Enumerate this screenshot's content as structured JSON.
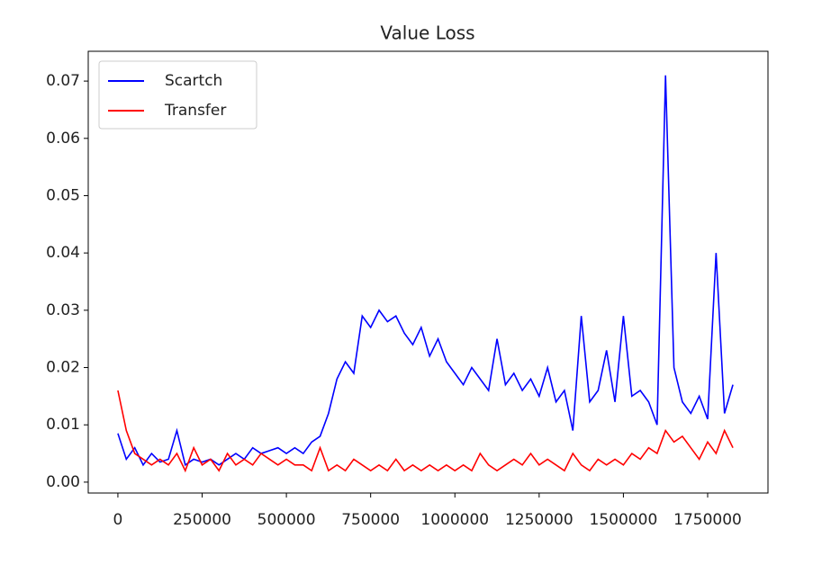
{
  "chart_data": {
    "type": "line",
    "title": "Value Loss",
    "x": [
      0,
      25000,
      50000,
      75000,
      100000,
      125000,
      150000,
      175000,
      200000,
      225000,
      250000,
      275000,
      300000,
      325000,
      350000,
      375000,
      400000,
      425000,
      450000,
      475000,
      500000,
      525000,
      550000,
      575000,
      600000,
      625000,
      650000,
      675000,
      700000,
      725000,
      750000,
      775000,
      800000,
      825000,
      850000,
      875000,
      900000,
      925000,
      950000,
      975000,
      1000000,
      1025000,
      1050000,
      1075000,
      1100000,
      1125000,
      1150000,
      1175000,
      1200000,
      1225000,
      1250000,
      1275000,
      1300000,
      1325000,
      1350000,
      1375000,
      1400000,
      1425000,
      1450000,
      1475000,
      1500000,
      1525000,
      1550000,
      1575000,
      1600000,
      1625000,
      1650000,
      1675000,
      1700000,
      1725000,
      1750000,
      1775000,
      1800000,
      1825000
    ],
    "series": [
      {
        "name": "Scartch",
        "color": "#0000ff",
        "values": [
          0.0085,
          0.004,
          0.006,
          0.003,
          0.005,
          0.0035,
          0.004,
          0.009,
          0.003,
          0.004,
          0.0035,
          0.004,
          0.003,
          0.004,
          0.005,
          0.004,
          0.006,
          0.005,
          0.0055,
          0.006,
          0.005,
          0.006,
          0.005,
          0.007,
          0.008,
          0.012,
          0.018,
          0.021,
          0.019,
          0.029,
          0.027,
          0.03,
          0.028,
          0.029,
          0.026,
          0.024,
          0.027,
          0.022,
          0.025,
          0.021,
          0.019,
          0.017,
          0.02,
          0.018,
          0.016,
          0.025,
          0.017,
          0.019,
          0.016,
          0.018,
          0.015,
          0.02,
          0.014,
          0.016,
          0.009,
          0.029,
          0.014,
          0.016,
          0.023,
          0.014,
          0.029,
          0.015,
          0.016,
          0.014,
          0.01,
          0.071,
          0.02,
          0.014,
          0.012,
          0.015,
          0.011,
          0.04,
          0.012,
          0.017
        ]
      },
      {
        "name": "Transfer",
        "color": "#ff0000",
        "values": [
          0.016,
          0.009,
          0.005,
          0.004,
          0.003,
          0.004,
          0.003,
          0.005,
          0.002,
          0.006,
          0.003,
          0.004,
          0.002,
          0.005,
          0.003,
          0.004,
          0.003,
          0.005,
          0.004,
          0.003,
          0.004,
          0.003,
          0.003,
          0.002,
          0.006,
          0.002,
          0.003,
          0.002,
          0.004,
          0.003,
          0.002,
          0.003,
          0.002,
          0.004,
          0.002,
          0.003,
          0.002,
          0.003,
          0.002,
          0.003,
          0.002,
          0.003,
          0.002,
          0.005,
          0.003,
          0.002,
          0.003,
          0.004,
          0.003,
          0.005,
          0.003,
          0.004,
          0.003,
          0.002,
          0.005,
          0.003,
          0.002,
          0.004,
          0.003,
          0.004,
          0.003,
          0.005,
          0.004,
          0.006,
          0.005,
          0.009,
          0.007,
          0.008,
          0.006,
          0.004,
          0.007,
          0.005,
          0.009,
          0.006
        ]
      }
    ],
    "xlim": [
      -88000,
      1929000
    ],
    "xticks": [
      0,
      250000,
      500000,
      750000,
      1000000,
      1250000,
      1500000,
      1750000
    ],
    "ylim": [
      -0.0019,
      0.0752
    ],
    "yticks": [
      {
        "value": 0,
        "label": "0.00"
      },
      {
        "value": 0.01,
        "label": "0.01"
      },
      {
        "value": 0.02,
        "label": "0.02"
      },
      {
        "value": 0.03,
        "label": "0.03"
      },
      {
        "value": 0.04,
        "label": "0.04"
      },
      {
        "value": 0.05,
        "label": "0.05"
      },
      {
        "value": 0.06,
        "label": "0.06"
      },
      {
        "value": 0.07,
        "label": "0.07"
      }
    ],
    "legend": "upper left",
    "grid": false
  }
}
